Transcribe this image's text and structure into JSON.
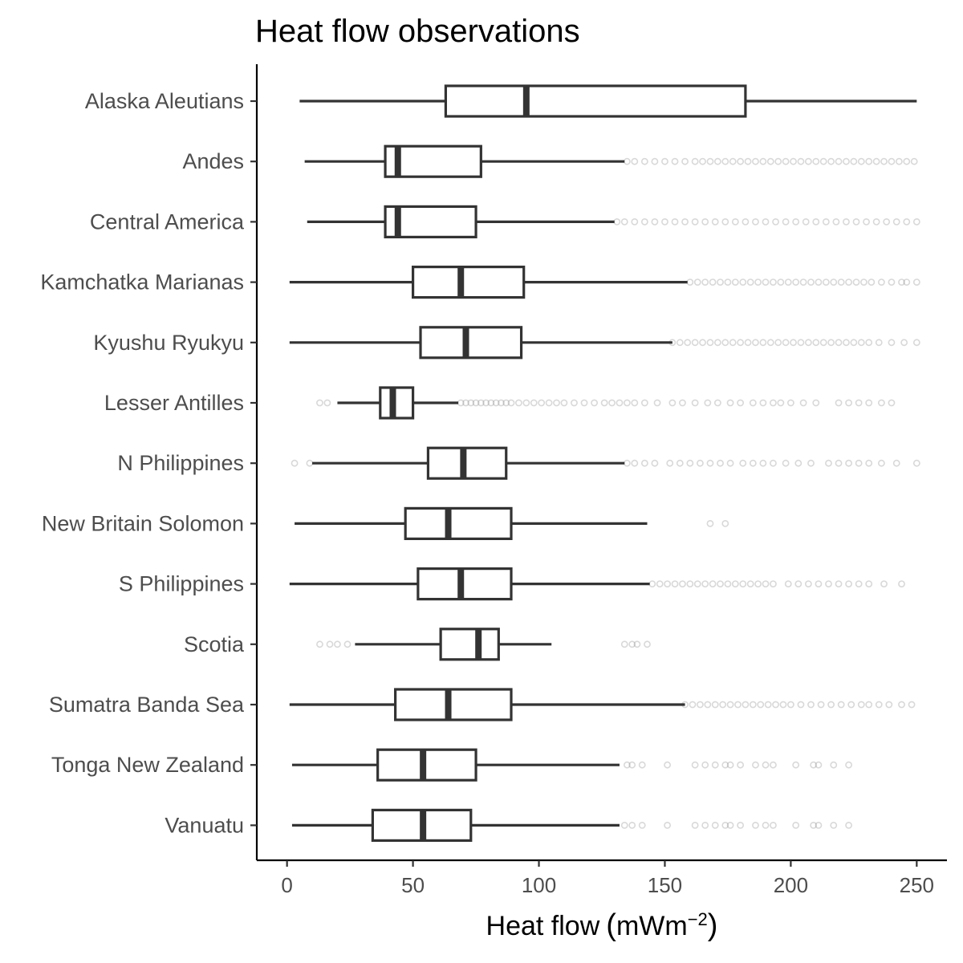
{
  "chart_data": {
    "type": "boxplot",
    "orientation": "horizontal",
    "title": "Heat flow observations",
    "xlabel": "Heat flow",
    "xlabel_unit": "mWm",
    "xlabel_unit_exponent": "−2",
    "xlim": [
      -12,
      262
    ],
    "xticks": [
      0,
      50,
      100,
      150,
      200,
      250
    ],
    "xtick_labels": [
      "0",
      "50",
      "100",
      "150",
      "200",
      "250"
    ],
    "grid": false,
    "colors": {
      "box_stroke": "#333333",
      "box_fill": "#ffffff",
      "outlier": "#7f7f7f",
      "axis": "#000000"
    },
    "categories": [
      "Alaska Aleutians",
      "Andes",
      "Central America",
      "Kamchatka Marianas",
      "Kyushu Ryukyu",
      "Lesser Antilles",
      "N Philippines",
      "New Britain Solomon",
      "S Philippines",
      "Scotia",
      "Sumatra Banda Sea",
      "Tonga New Zealand",
      "Vanuatu"
    ],
    "boxes": [
      {
        "category": "Alaska Aleutians",
        "whisker_low": 5,
        "q1": 63,
        "median": 95,
        "q3": 182,
        "whisker_high": 250,
        "outliers": []
      },
      {
        "category": "Andes",
        "whisker_low": 7,
        "q1": 39,
        "median": 44,
        "q3": 77,
        "whisker_high": 134,
        "outliers": [
          135,
          138,
          142,
          146,
          150,
          154,
          158,
          162,
          165,
          168,
          171,
          174,
          177,
          180,
          183,
          186,
          189,
          192,
          195,
          198,
          201,
          204,
          207,
          210,
          213,
          216,
          219,
          222,
          225,
          228,
          231,
          234,
          237,
          240,
          243,
          246,
          249
        ]
      },
      {
        "category": "Central America",
        "whisker_low": 8,
        "q1": 39,
        "median": 44,
        "q3": 75,
        "whisker_high": 130,
        "outliers": [
          131,
          134,
          138,
          142,
          146,
          150,
          154,
          158,
          162,
          166,
          170,
          174,
          178,
          182,
          186,
          190,
          194,
          198,
          202,
          206,
          210,
          214,
          218,
          222,
          226,
          230,
          234,
          238,
          242,
          246,
          250
        ]
      },
      {
        "category": "Kamchatka Marianas",
        "whisker_low": 1,
        "q1": 50,
        "median": 69,
        "q3": 94,
        "whisker_high": 159,
        "outliers": [
          160,
          163,
          166,
          169,
          172,
          175,
          178,
          181,
          184,
          187,
          190,
          193,
          196,
          199,
          202,
          205,
          208,
          211,
          214,
          217,
          220,
          223,
          226,
          229,
          232,
          236,
          240,
          244,
          246,
          250
        ]
      },
      {
        "category": "Kyushu Ryukyu",
        "whisker_low": 1,
        "q1": 53,
        "median": 71,
        "q3": 93,
        "whisker_high": 153,
        "outliers": [
          153,
          156,
          159,
          162,
          165,
          168,
          171,
          174,
          177,
          180,
          183,
          186,
          189,
          192,
          195,
          198,
          201,
          204,
          207,
          210,
          213,
          216,
          219,
          222,
          225,
          228,
          231,
          235,
          240,
          245,
          250
        ]
      },
      {
        "category": "Lesser Antilles",
        "whisker_low": 20,
        "q1": 37,
        "median": 42,
        "q3": 50,
        "whisker_high": 68,
        "outliers": [
          13,
          16,
          69,
          71,
          73,
          75,
          77,
          79,
          81,
          83,
          85,
          87,
          89,
          92,
          95,
          98,
          101,
          104,
          107,
          110,
          114,
          118,
          122,
          126,
          129,
          132,
          135,
          138,
          142,
          147,
          153,
          157,
          162,
          167,
          171,
          176,
          180,
          185,
          189,
          193,
          196,
          200,
          205,
          210,
          219,
          223,
          227,
          231,
          236,
          240
        ]
      },
      {
        "category": "N Philippines",
        "whisker_low": 10,
        "q1": 56,
        "median": 70,
        "q3": 87,
        "whisker_high": 134,
        "outliers": [
          3,
          9,
          135,
          138,
          142,
          146,
          152,
          156,
          160,
          164,
          168,
          172,
          176,
          181,
          185,
          189,
          193,
          198,
          203,
          208,
          215,
          219,
          223,
          227,
          231,
          236,
          242,
          250
        ]
      },
      {
        "category": "New Britain Solomon",
        "whisker_low": 3,
        "q1": 47,
        "median": 64,
        "q3": 89,
        "whisker_high": 143,
        "outliers": [
          168,
          174
        ]
      },
      {
        "category": "S Philippines",
        "whisker_low": 1,
        "q1": 52,
        "median": 69,
        "q3": 89,
        "whisker_high": 144,
        "outliers": [
          145,
          148,
          151,
          154,
          157,
          160,
          163,
          166,
          169,
          172,
          175,
          178,
          181,
          184,
          187,
          190,
          193,
          199,
          203,
          207,
          211,
          215,
          219,
          223,
          227,
          231,
          237,
          244
        ]
      },
      {
        "category": "Scotia",
        "whisker_low": 27,
        "q1": 61,
        "median": 76,
        "q3": 84,
        "whisker_high": 105,
        "outliers": [
          13,
          17,
          20,
          24,
          134,
          137,
          139,
          143
        ]
      },
      {
        "category": "Sumatra Banda Sea",
        "whisker_low": 1,
        "q1": 43,
        "median": 64,
        "q3": 89,
        "whisker_high": 158,
        "outliers": [
          158,
          161,
          164,
          167,
          170,
          173,
          176,
          179,
          182,
          185,
          188,
          191,
          194,
          197,
          200,
          204,
          208,
          212,
          216,
          220,
          224,
          228,
          231,
          235,
          239,
          244,
          248
        ]
      },
      {
        "category": "Tonga New Zealand",
        "whisker_low": 2,
        "q1": 36,
        "median": 54,
        "q3": 75,
        "whisker_high": 132,
        "outliers": [
          135,
          137,
          141,
          151,
          162,
          166,
          170,
          174,
          176,
          180,
          186,
          190,
          193,
          202,
          209,
          211,
          217,
          223
        ]
      },
      {
        "category": "Vanuatu",
        "whisker_low": 2,
        "q1": 34,
        "median": 54,
        "q3": 73,
        "whisker_high": 132,
        "outliers": [
          134,
          137,
          141,
          151,
          162,
          166,
          170,
          174,
          176,
          180,
          186,
          190,
          193,
          202,
          209,
          211,
          217,
          223
        ]
      }
    ]
  }
}
